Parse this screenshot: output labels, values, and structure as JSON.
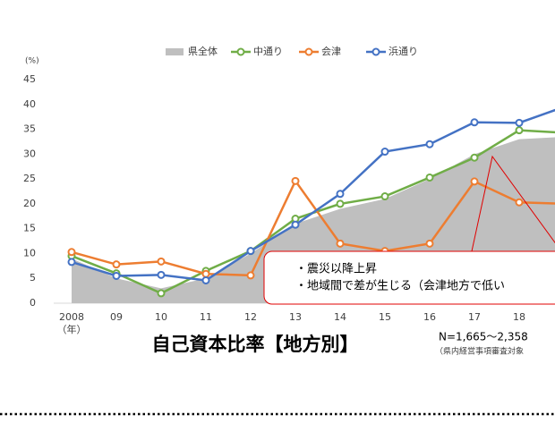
{
  "chart_data": {
    "type": "line",
    "title": "自己資本比率【地方別】",
    "subtitle": "N=1,665～2,358",
    "source_note": "（県内経営事項審査対象",
    "y_unit": "(%)",
    "x_unit": "（年）",
    "categories": [
      "2008",
      "09",
      "10",
      "11",
      "12",
      "13",
      "14",
      "15",
      "16",
      "17",
      "18",
      null
    ],
    "series": [
      {
        "name": "県全体",
        "color": "#bfbfbf",
        "style": "area",
        "values": [
          9,
          5,
          3,
          5,
          10,
          16,
          19,
          21,
          25,
          30,
          33,
          33.5
        ]
      },
      {
        "name": "中通り",
        "color": "#70ad47",
        "style": "line",
        "values": [
          9.5,
          6,
          2,
          6.5,
          10.5,
          17,
          20,
          21.5,
          25.3,
          29.3,
          34.8,
          34.3
        ]
      },
      {
        "name": "会津",
        "color": "#ed7d31",
        "style": "line",
        "values": [
          10.3,
          7.8,
          8.4,
          5.9,
          5.6,
          24.6,
          12,
          10.5,
          12,
          24.5,
          20.3,
          20
        ]
      },
      {
        "name": "浜通り",
        "color": "#4472c4",
        "style": "line",
        "values": [
          8.3,
          5.5,
          5.7,
          4.6,
          10.5,
          15.8,
          22,
          30.5,
          32,
          36.4,
          36.3,
          39.5
        ]
      }
    ],
    "ylim": [
      0,
      45
    ],
    "yticks": [
      0,
      5,
      10,
      15,
      20,
      25,
      30,
      35,
      40,
      45
    ],
    "annotations": [
      "・震災以降上昇",
      "・地域間で差が生じる（会津地方で低い"
    ]
  }
}
